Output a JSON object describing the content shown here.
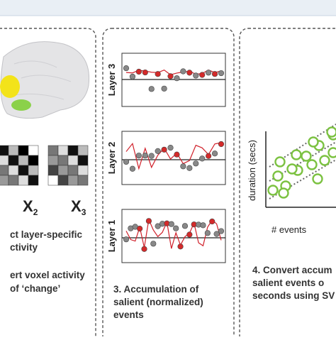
{
  "panel1": {
    "matrices": [
      {
        "label": "X",
        "subscript": "2"
      },
      {
        "label": "X",
        "subscript": "3"
      }
    ],
    "caption_lines": [
      "ct layer-specific",
      "ctivity"
    ],
    "caption2_lines": [
      "ert voxel activity",
      "of ‘change’"
    ]
  },
  "panel2": {
    "layers": [
      "Layer 3",
      "Layer 2",
      "Layer 1"
    ],
    "caption_lines": [
      "3. Accumulation of",
      "salient (normalized)",
      "events"
    ]
  },
  "panel3": {
    "y_label": "duration (secs)",
    "x_label": "# events",
    "caption_lines": [
      "4. Convert accum",
      "salient events o",
      "seconds using SV"
    ]
  }
}
